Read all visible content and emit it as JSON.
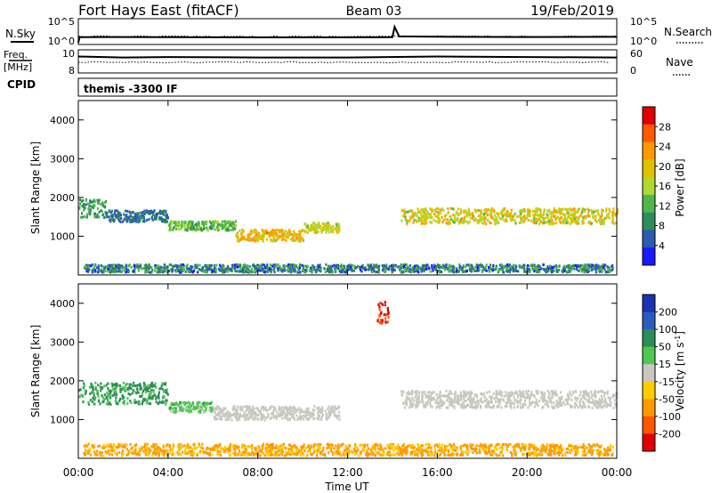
{
  "header": {
    "radar": "Fort Hays East (fitACF)",
    "beam": "Beam 03",
    "date": "19/Feb/2019"
  },
  "noise_panel": {
    "left_label": "N.Sky",
    "left_ticks": [
      "10^5",
      "10^0"
    ],
    "right_ticks": [
      "10^5",
      "10^0"
    ],
    "right_label": "N.Search"
  },
  "freq_panel": {
    "left_label_1": "Freq.",
    "left_label_2": "[MHz]",
    "left_ticks": [
      "10",
      "8"
    ],
    "right_ticks": [
      "60",
      "0"
    ],
    "right_label": "Nave"
  },
  "cpid_panel": {
    "label": "CPID",
    "text": "themis -3300 IF"
  },
  "power_panel": {
    "ylabel": "Slant Range [km]",
    "yticks": [
      "4000",
      "3000",
      "2000",
      "1000"
    ],
    "colorbar_label": "Power [dB]",
    "colorbar_ticks": [
      "28",
      "24",
      "20",
      "16",
      "12",
      "8",
      "4"
    ],
    "colorbar_colors": [
      "#e00000",
      "#ff5a00",
      "#ff9a00",
      "#e0c000",
      "#b0d830",
      "#4cb84c",
      "#2e8c5a",
      "#2a5cb0",
      "#1a1aff"
    ]
  },
  "velocity_panel": {
    "ylabel": "Slant Range [km]",
    "yticks": [
      "4000",
      "3000",
      "2000",
      "1000"
    ],
    "colorbar_label": "Velocity [m s^-1]",
    "colorbar_ticks": [
      "200",
      "100",
      "50",
      "15",
      "-15",
      "-50",
      "-100",
      "-200"
    ],
    "colorbar_colors": [
      "#1a33b0",
      "#2a5cc0",
      "#2e8c5a",
      "#50c850",
      "#c8c8c0",
      "#ffcc00",
      "#ff9900",
      "#ff5500",
      "#e00000"
    ]
  },
  "xaxis": {
    "label": "Time UT",
    "ticks": [
      "00:00",
      "04:00",
      "08:00",
      "12:00",
      "16:00",
      "20:00",
      "00:00"
    ]
  },
  "chart_data": [
    {
      "type": "line",
      "title": "N.Sky",
      "x": [
        0,
        0.05,
        2,
        4,
        8,
        12,
        14,
        14.1,
        14.3,
        16,
        20,
        24
      ],
      "values": [
        1,
        20,
        22,
        20,
        18,
        18,
        20,
        5000,
        30,
        25,
        22,
        24
      ],
      "ylim": [
        1,
        100000
      ],
      "log_y": true
    },
    {
      "type": "line",
      "title": "Freq.",
      "x": [
        0,
        2,
        4,
        8,
        12,
        16,
        20,
        24
      ],
      "values": [
        9.5,
        9.4,
        9.45,
        9.4,
        9.4,
        9.5,
        9.45,
        9.4
      ],
      "ylim": [
        8,
        10
      ]
    },
    {
      "type": "heatmap",
      "title": "Power [dB]",
      "xlabel": "Time UT",
      "ylabel": "Slant Range [km]",
      "xlim": [
        0,
        24
      ],
      "ylim": [
        0,
        4500
      ],
      "cbar_range": [
        2,
        30
      ],
      "bands": [
        {
          "t0": 0.0,
          "t1": 1.2,
          "r": 1750,
          "w": 250,
          "p0": 8,
          "p1": 14
        },
        {
          "t0": 1.2,
          "t1": 4.0,
          "r": 1550,
          "w": 150,
          "p0": 6,
          "p1": 10
        },
        {
          "t0": 4.0,
          "t1": 7.0,
          "r": 1300,
          "w": 120,
          "p0": 10,
          "p1": 16
        },
        {
          "t0": 7.0,
          "t1": 10.0,
          "r": 1050,
          "w": 150,
          "p0": 16,
          "p1": 24
        },
        {
          "t0": 10.0,
          "t1": 11.6,
          "r": 1250,
          "w": 130,
          "p0": 14,
          "p1": 20
        },
        {
          "t0": 14.3,
          "t1": 24.0,
          "r": 1550,
          "w": 200,
          "p0": 14,
          "p1": 22
        },
        {
          "t0": 0.2,
          "t1": 23.8,
          "r": 200,
          "w": 100,
          "p0": 4,
          "p1": 14
        }
      ]
    },
    {
      "type": "heatmap",
      "title": "Velocity [m s^-1]",
      "xlabel": "Time UT",
      "ylabel": "Slant Range [km]",
      "xlim": [
        0,
        24
      ],
      "ylim": [
        0,
        4500
      ],
      "cbar_range": [
        -200,
        200
      ],
      "bands": [
        {
          "t0": 0.0,
          "t1": 4.0,
          "r": 1700,
          "w": 280,
          "v": 60
        },
        {
          "t0": 4.0,
          "t1": 6.0,
          "r": 1350,
          "w": 130,
          "v": 30
        },
        {
          "t0": 6.0,
          "t1": 11.6,
          "r": 1200,
          "w": 180,
          "v": 0
        },
        {
          "t0": 14.3,
          "t1": 24.0,
          "r": 1550,
          "w": 220,
          "v": 0
        },
        {
          "t0": 13.3,
          "t1": 13.8,
          "r": 3800,
          "w": 300,
          "v": -200
        },
        {
          "t0": 0.2,
          "t1": 23.8,
          "r": 250,
          "w": 150,
          "v": -60
        }
      ]
    }
  ]
}
